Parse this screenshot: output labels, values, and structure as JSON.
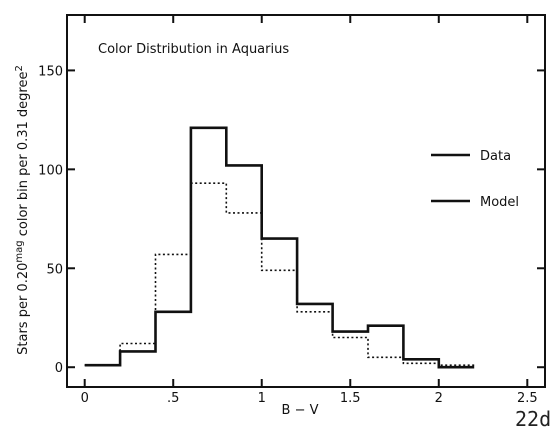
{
  "chart_data": {
    "type": "line",
    "title": "Color Distribution in Aquarius",
    "xlabel": "B − V",
    "ylabel_parts": [
      "Stars per 0.20",
      "mag",
      " color bin per 0.31 degree",
      "2"
    ],
    "xlim": [
      -0.1,
      2.6
    ],
    "ylim": [
      -10,
      178
    ],
    "x_ticks": [
      0,
      0.5,
      1,
      1.5,
      2,
      2.5
    ],
    "x_tick_labels": [
      "0",
      ".5",
      "1",
      "1.5",
      "2",
      "2.5"
    ],
    "y_ticks": [
      0,
      50,
      100,
      150
    ],
    "y_tick_labels": [
      "0",
      "50",
      "100",
      "150"
    ],
    "legend_position": "right",
    "bin_edges": [
      0,
      0.2,
      0.4,
      0.6,
      0.8,
      1.0,
      1.2,
      1.4,
      1.6,
      1.8,
      2.0,
      2.2
    ],
    "series": [
      {
        "name": "Data",
        "style": "solid",
        "values": [
          1,
          8,
          28,
          121,
          102,
          65,
          32,
          18,
          21,
          4,
          0
        ]
      },
      {
        "name": "Model",
        "style": "dotted",
        "values": [
          1,
          12,
          57,
          93,
          78,
          49,
          28,
          15,
          5,
          2,
          1
        ]
      }
    ],
    "figure_tag": "22d"
  }
}
